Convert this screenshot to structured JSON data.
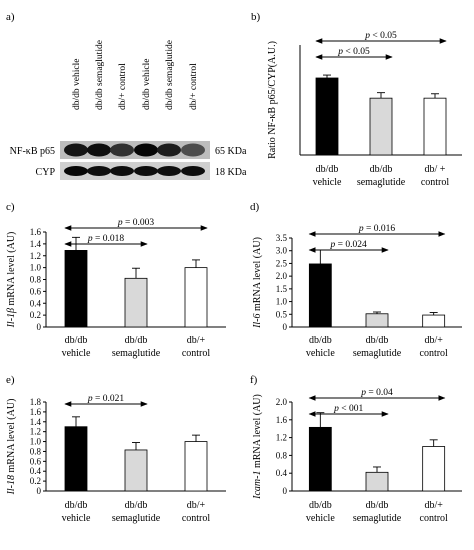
{
  "western_blot": {
    "panel_label": "a)",
    "lane_labels": [
      "db/db vehicle",
      "db/db semaglutide",
      "db/+ control",
      "db/db vehicle",
      "db/db semaglutide",
      "db/+ control"
    ],
    "bands": [
      {
        "protein": "NF-κB p65",
        "size": "65 KDa",
        "intensities": [
          0.85,
          0.9,
          0.65,
          0.95,
          0.8,
          0.45
        ]
      },
      {
        "protein": "CYP",
        "size": "18 KDa",
        "intensities": [
          0.95,
          0.9,
          0.9,
          0.9,
          0.9,
          0.9
        ]
      }
    ]
  },
  "chart_data": [
    {
      "panel": "b)",
      "type": "bar",
      "categories": [
        [
          "db/db",
          "vehicle"
        ],
        [
          "db/db",
          "semaglutide"
        ],
        [
          "db/ +",
          "control"
        ]
      ],
      "values": [
        2.1,
        1.55,
        1.55
      ],
      "errors": [
        0.08,
        0.15,
        0.12
      ],
      "bar_colors": [
        "#000000",
        "#d9d9d9",
        "#ffffff"
      ],
      "ylabel": "Ratio NF-κB p65/CYP(A.U.)",
      "ylim": [
        0,
        3
      ],
      "yticks": [],
      "ytick_labels": [],
      "comparisons": [
        {
          "from": 0,
          "to": 1,
          "label_prefix": "p",
          "label_rest": " < 0.05"
        },
        {
          "from": 0,
          "to": 2,
          "label_prefix": "p",
          "label_rest": " < 0.05"
        }
      ]
    },
    {
      "panel": "c)",
      "type": "bar",
      "categories": [
        [
          "db/db",
          "vehicle"
        ],
        [
          "db/db",
          "semaglutide"
        ],
        [
          "db/+",
          "control"
        ]
      ],
      "values": [
        1.29,
        0.82,
        1.0
      ],
      "errors": [
        0.22,
        0.17,
        0.13
      ],
      "bar_colors": [
        "#000000",
        "#d9d9d9",
        "#ffffff"
      ],
      "ylabel_italic": "Il-1β",
      "ylabel_rest": " mRNA level (AU)",
      "ylim": [
        0,
        1.6
      ],
      "yticks": [
        0,
        0.2,
        0.4,
        0.6,
        0.8,
        1.0,
        1.2,
        1.4,
        1.6
      ],
      "ytick_labels": [
        "0",
        "0.2",
        "0.4",
        "0.6",
        "0.8",
        "1.0",
        "1.2",
        "1.4",
        "1.6"
      ],
      "comparisons": [
        {
          "from": 0,
          "to": 1,
          "label_prefix": "p",
          "label_rest": " = 0.018"
        },
        {
          "from": 0,
          "to": 2,
          "label_prefix": "p",
          "label_rest": " = 0.003"
        }
      ]
    },
    {
      "panel": "d)",
      "type": "bar",
      "categories": [
        [
          "db/db",
          "vehicle"
        ],
        [
          "db/db",
          "semaglutide"
        ],
        [
          "db/+",
          "control"
        ]
      ],
      "values": [
        2.48,
        0.52,
        0.47
      ],
      "errors": [
        0.55,
        0.07,
        0.1
      ],
      "bar_colors": [
        "#000000",
        "#d9d9d9",
        "#ffffff"
      ],
      "ylabel_italic": "Il-6",
      "ylabel_rest": " mRNA level (AU)",
      "ylim": [
        0,
        3.5
      ],
      "yticks": [
        0,
        0.5,
        1.0,
        1.5,
        2.0,
        2.5,
        3.0,
        3.5
      ],
      "ytick_labels": [
        "0",
        "0.5",
        "1.0",
        "1.5",
        "2.0",
        "2.5",
        "3.0",
        "3.5"
      ],
      "comparisons": [
        {
          "from": 0,
          "to": 1,
          "label_prefix": "p",
          "label_rest": " = 0.024"
        },
        {
          "from": 0,
          "to": 2,
          "label_prefix": "p",
          "label_rest": " = 0.016"
        }
      ]
    },
    {
      "panel": "e)",
      "type": "bar",
      "categories": [
        [
          "db/db",
          "vehicle"
        ],
        [
          "db/db",
          "semaglutide"
        ],
        [
          "db/+",
          "control"
        ]
      ],
      "values": [
        1.3,
        0.83,
        1.0
      ],
      "errors": [
        0.2,
        0.15,
        0.13
      ],
      "bar_colors": [
        "#000000",
        "#d9d9d9",
        "#ffffff"
      ],
      "ylabel_italic": "Il-18",
      "ylabel_rest": " mRNA level (AU)",
      "ylim": [
        0,
        1.8
      ],
      "yticks": [
        0,
        0.2,
        0.4,
        0.6,
        0.8,
        1.0,
        1.2,
        1.4,
        1.6,
        1.8
      ],
      "ytick_labels": [
        "0",
        "0.2",
        "0.4",
        "0.6",
        "0.8",
        "1.0",
        "1.2",
        "1.4",
        "1.6",
        "1.8"
      ],
      "comparisons": [
        {
          "from": 0,
          "to": 1,
          "label_prefix": "p",
          "label_rest": " = 0.021"
        }
      ]
    },
    {
      "panel": "f)",
      "type": "bar",
      "categories": [
        [
          "db/db",
          "vehicle"
        ],
        [
          "db/db",
          "semaglutide"
        ],
        [
          "db/+",
          "control"
        ]
      ],
      "values": [
        1.43,
        0.42,
        1.0
      ],
      "errors": [
        0.33,
        0.12,
        0.15
      ],
      "bar_colors": [
        "#000000",
        "#d9d9d9",
        "#ffffff"
      ],
      "ylabel_italic": "Icam-1",
      "ylabel_rest": " mRNA level (AU)",
      "ylim": [
        0,
        2.0
      ],
      "yticks": [
        0,
        0.4,
        0.8,
        1.2,
        1.6,
        2.0
      ],
      "ytick_labels": [
        "0",
        "0.4",
        "0.8",
        "1.2",
        "1.6",
        "2.0"
      ],
      "comparisons": [
        {
          "from": 0,
          "to": 1,
          "label_prefix": "p",
          "label_rest": " < 001"
        },
        {
          "from": 0,
          "to": 2,
          "label_prefix": "p",
          "label_rest": " = 0.04"
        }
      ]
    }
  ]
}
